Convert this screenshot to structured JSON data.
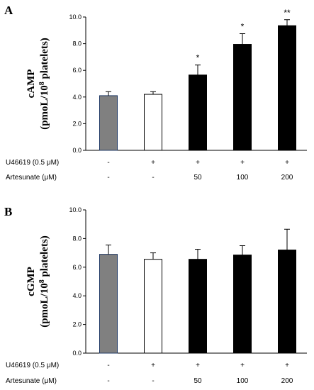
{
  "chart_data": [
    {
      "type": "bar",
      "panel_letter": "A",
      "ylabel_line1": "cAMP",
      "ylabel_line2_pre": "(pmoL/10",
      "ylabel_line2_sup": "8",
      "ylabel_line2_post": " platelets)",
      "ylim": [
        0,
        10
      ],
      "yticks": [
        "0.0",
        "2.0",
        "4.0",
        "6.0",
        "8.0",
        "10.0"
      ],
      "values": [
        4.1,
        4.2,
        5.65,
        7.95,
        9.35
      ],
      "errors": [
        0.3,
        0.2,
        0.75,
        0.8,
        0.45
      ],
      "fills": [
        "#808080",
        "#ffffff",
        "#000000",
        "#000000",
        "#000000"
      ],
      "strokes": [
        "#1f3864",
        "#000000",
        "#000000",
        "#000000",
        "#000000"
      ],
      "significance": [
        "",
        "",
        "*",
        "*",
        "**"
      ],
      "grid": false
    },
    {
      "type": "bar",
      "panel_letter": "B",
      "ylabel_line1": "cGMP",
      "ylabel_line2_pre": "(pmoL/10",
      "ylabel_line2_sup": "8",
      "ylabel_line2_post": " platelets)",
      "ylim": [
        0,
        10
      ],
      "yticks": [
        "0.0",
        "2.0",
        "4.0",
        "6.0",
        "8.0",
        "10.0"
      ],
      "values": [
        6.9,
        6.55,
        6.55,
        6.85,
        7.2
      ],
      "errors": [
        0.65,
        0.45,
        0.7,
        0.65,
        1.45
      ],
      "fills": [
        "#808080",
        "#ffffff",
        "#000000",
        "#000000",
        "#000000"
      ],
      "strokes": [
        "#1f3864",
        "#000000",
        "#000000",
        "#000000",
        "#000000"
      ],
      "significance": [
        "",
        "",
        "",
        "",
        ""
      ],
      "grid": false
    }
  ],
  "treatment_rows": [
    {
      "label": "U46619  (0.5 μM)",
      "values": [
        "-",
        "+",
        "+",
        "+",
        "+"
      ]
    },
    {
      "label": "Artesunate (μM)",
      "values": [
        "-",
        "-",
        "50",
        "100",
        "200"
      ]
    }
  ]
}
